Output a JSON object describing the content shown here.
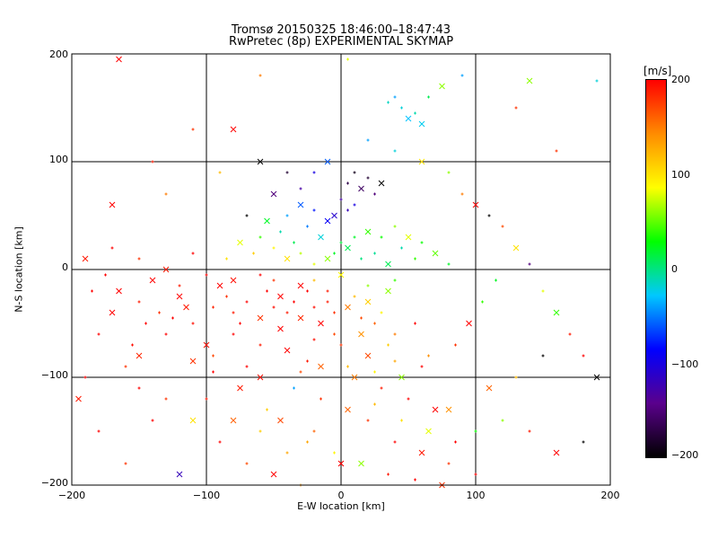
{
  "chart_data": {
    "type": "scatter",
    "title": "Tromsø 20150325 18:46:00–18:47:43",
    "subtitle": "RwPretec (8p) EXPERIMENTAL SKYMAP",
    "xlabel": "E-W location [km]",
    "ylabel": "N-S location [km]",
    "xlim": [
      -200,
      200
    ],
    "ylim": [
      -200,
      200
    ],
    "x_ticks": [
      "−200",
      "−100",
      "0",
      "100",
      "200"
    ],
    "y_ticks": [
      "−200",
      "−100",
      "0",
      "100",
      "200"
    ],
    "grid": true,
    "colorbar": {
      "label": "[m/s]",
      "range": [
        -200,
        200
      ],
      "ticks": [
        "200",
        "100",
        "0",
        "−100",
        "−200"
      ],
      "colors": [
        "#000000",
        "#5a008c",
        "#0000ff",
        "#00c8ff",
        "#00ff00",
        "#ffff00",
        "#ff8c00",
        "#ff0000"
      ]
    },
    "marker_styles": [
      "x",
      "+"
    ],
    "series": [
      {
        "points": [
          [
            -165,
            -20,
            200
          ],
          [
            -150,
            -30,
            190
          ],
          [
            -135,
            -40,
            180
          ],
          [
            -120,
            -25,
            200
          ],
          [
            -110,
            -50,
            195
          ],
          [
            -95,
            -35,
            185
          ],
          [
            -90,
            -15,
            200
          ],
          [
            -80,
            -40,
            190
          ],
          [
            -70,
            -30,
            200
          ],
          [
            -60,
            -45,
            180
          ],
          [
            -55,
            -20,
            200
          ],
          [
            -50,
            -35,
            195
          ],
          [
            -45,
            -25,
            200
          ],
          [
            -40,
            -40,
            190
          ],
          [
            -35,
            -30,
            200
          ],
          [
            -30,
            -45,
            185
          ],
          [
            -25,
            -20,
            200
          ],
          [
            -20,
            -35,
            195
          ],
          [
            -15,
            -50,
            200
          ],
          [
            -10,
            -30,
            190
          ],
          [
            -5,
            -40,
            180
          ],
          [
            5,
            -35,
            150
          ],
          [
            10,
            -25,
            120
          ],
          [
            15,
            -45,
            170
          ],
          [
            20,
            -30,
            110
          ],
          [
            25,
            -50,
            160
          ],
          [
            30,
            -40,
            90
          ],
          [
            35,
            -20,
            60
          ],
          [
            40,
            -60,
            150
          ],
          [
            -130,
            -60,
            200
          ],
          [
            -100,
            -70,
            195
          ],
          [
            -80,
            -60,
            200
          ],
          [
            -60,
            -70,
            190
          ],
          [
            -40,
            -75,
            200
          ],
          [
            -20,
            -65,
            195
          ],
          [
            0,
            -70,
            180
          ],
          [
            20,
            -80,
            170
          ],
          [
            40,
            -85,
            130
          ],
          [
            60,
            -90,
            200
          ],
          [
            -140,
            -10,
            200
          ],
          [
            -120,
            -15,
            190
          ],
          [
            -100,
            -5,
            200
          ],
          [
            -80,
            -10,
            195
          ],
          [
            -60,
            -5,
            200
          ],
          [
            -20,
            -10,
            120
          ],
          [
            0,
            -5,
            90
          ],
          [
            20,
            -15,
            60
          ],
          [
            40,
            -10,
            40
          ],
          [
            -170,
            -40,
            200
          ],
          [
            -180,
            -60,
            200
          ],
          [
            -155,
            -70,
            195
          ],
          [
            -110,
            -85,
            180
          ],
          [
            -70,
            -90,
            200
          ],
          [
            -30,
            -95,
            170
          ],
          [
            10,
            -100,
            150
          ],
          [
            30,
            -110,
            190
          ],
          [
            50,
            -120,
            200
          ],
          [
            70,
            -130,
            200
          ],
          [
            20,
            -140,
            180
          ],
          [
            40,
            -160,
            200
          ],
          [
            60,
            -170,
            190
          ],
          [
            -20,
            -150,
            160
          ],
          [
            -40,
            -170,
            130
          ],
          [
            0,
            -180,
            200
          ],
          [
            80,
            -180,
            180
          ],
          [
            100,
            -190,
            200
          ],
          [
            -150,
            -80,
            185
          ],
          [
            -125,
            -45,
            200
          ],
          [
            -85,
            -25,
            180
          ],
          [
            -45,
            -55,
            200
          ],
          [
            -25,
            -85,
            190
          ],
          [
            -5,
            -60,
            170
          ],
          [
            15,
            -60,
            140
          ],
          [
            35,
            -70,
            110
          ],
          [
            55,
            -50,
            200
          ],
          [
            -60,
            -100,
            195
          ],
          [
            -95,
            -95,
            200
          ],
          [
            -15,
            -120,
            180
          ],
          [
            5,
            -130,
            160
          ],
          [
            25,
            -125,
            120
          ],
          [
            45,
            -140,
            100
          ],
          [
            65,
            -150,
            80
          ],
          [
            85,
            -160,
            200
          ],
          [
            -10,
            -20,
            190
          ],
          [
            -30,
            -15,
            200
          ],
          [
            -50,
            -10,
            180
          ],
          [
            -75,
            -50,
            200
          ],
          [
            -115,
            -35,
            190
          ],
          [
            -145,
            -50,
            200
          ],
          [
            -160,
            -90,
            180
          ],
          [
            -5,
            50,
            -110
          ],
          [
            5,
            55,
            -120
          ],
          [
            10,
            60,
            -100
          ],
          [
            -10,
            45,
            -90
          ],
          [
            -20,
            55,
            -80
          ],
          [
            0,
            65,
            -130
          ],
          [
            15,
            75,
            -160
          ],
          [
            20,
            85,
            -180
          ],
          [
            25,
            70,
            -150
          ],
          [
            30,
            80,
            -200
          ],
          [
            10,
            90,
            -190
          ],
          [
            5,
            80,
            -170
          ],
          [
            -30,
            60,
            -60
          ],
          [
            -40,
            50,
            -40
          ],
          [
            -25,
            40,
            -50
          ],
          [
            -15,
            30,
            -20
          ],
          [
            -35,
            25,
            10
          ],
          [
            -45,
            35,
            -10
          ],
          [
            -55,
            45,
            20
          ],
          [
            -60,
            30,
            40
          ],
          [
            -5,
            15,
            20
          ],
          [
            5,
            20,
            10
          ],
          [
            15,
            10,
            0
          ],
          [
            25,
            15,
            -5
          ],
          [
            35,
            5,
            10
          ],
          [
            45,
            20,
            -10
          ],
          [
            30,
            30,
            30
          ],
          [
            20,
            35,
            40
          ],
          [
            10,
            30,
            20
          ],
          [
            0,
            25,
            15
          ],
          [
            -10,
            10,
            60
          ],
          [
            -20,
            5,
            80
          ],
          [
            -30,
            15,
            70
          ],
          [
            -40,
            10,
            100
          ],
          [
            -50,
            20,
            90
          ],
          [
            -65,
            15,
            110
          ],
          [
            -75,
            25,
            80
          ],
          [
            -85,
            10,
            100
          ],
          [
            40,
            40,
            60
          ],
          [
            50,
            30,
            80
          ],
          [
            55,
            10,
            40
          ],
          [
            60,
            25,
            30
          ],
          [
            70,
            15,
            50
          ],
          [
            80,
            5,
            20
          ],
          [
            45,
            150,
            -20
          ],
          [
            50,
            140,
            -30
          ],
          [
            55,
            145,
            -10
          ],
          [
            40,
            160,
            -40
          ],
          [
            60,
            135,
            -25
          ],
          [
            35,
            155,
            -15
          ],
          [
            65,
            160,
            10
          ],
          [
            75,
            170,
            60
          ],
          [
            90,
            180,
            -40
          ],
          [
            130,
            150,
            180
          ],
          [
            140,
            175,
            60
          ],
          [
            190,
            175,
            -20
          ],
          [
            160,
            110,
            180
          ],
          [
            -165,
            195,
            200
          ],
          [
            5,
            195,
            80
          ],
          [
            -60,
            180,
            150
          ],
          [
            -80,
            130,
            200
          ],
          [
            -110,
            130,
            180
          ],
          [
            -140,
            100,
            190
          ],
          [
            -170,
            60,
            200
          ],
          [
            -130,
            70,
            150
          ],
          [
            -90,
            90,
            120
          ],
          [
            -60,
            100,
            -200
          ],
          [
            -40,
            90,
            -180
          ],
          [
            -70,
            50,
            -200
          ],
          [
            -50,
            70,
            -150
          ],
          [
            -30,
            75,
            -130
          ],
          [
            -20,
            90,
            -100
          ],
          [
            -10,
            100,
            -60
          ],
          [
            20,
            120,
            -40
          ],
          [
            40,
            110,
            -20
          ],
          [
            60,
            100,
            100
          ],
          [
            80,
            90,
            60
          ],
          [
            90,
            70,
            150
          ],
          [
            100,
            60,
            200
          ],
          [
            110,
            50,
            -200
          ],
          [
            120,
            40,
            170
          ],
          [
            130,
            20,
            100
          ],
          [
            140,
            5,
            -150
          ],
          [
            150,
            -20,
            80
          ],
          [
            160,
            -40,
            40
          ],
          [
            170,
            -60,
            190
          ],
          [
            180,
            -80,
            200
          ],
          [
            190,
            -100,
            -200
          ],
          [
            150,
            -80,
            -200
          ],
          [
            130,
            -100,
            120
          ],
          [
            110,
            -110,
            160
          ],
          [
            120,
            -140,
            60
          ],
          [
            140,
            -150,
            190
          ],
          [
            160,
            -170,
            200
          ],
          [
            180,
            -160,
            -200
          ],
          [
            100,
            -150,
            30
          ],
          [
            80,
            -130,
            140
          ],
          [
            -150,
            -110,
            200
          ],
          [
            -130,
            -120,
            180
          ],
          [
            -110,
            -140,
            100
          ],
          [
            -90,
            -160,
            200
          ],
          [
            -70,
            -180,
            170
          ],
          [
            -50,
            -190,
            200
          ],
          [
            -30,
            -200,
            140
          ],
          [
            -190,
            -100,
            200
          ],
          [
            -195,
            -120,
            190
          ],
          [
            -180,
            -150,
            200
          ],
          [
            -160,
            -180,
            180
          ],
          [
            -120,
            -190,
            -120
          ],
          [
            -175,
            -5,
            200
          ],
          [
            -185,
            -20,
            200
          ],
          [
            -190,
            10,
            190
          ],
          [
            -170,
            20,
            200
          ],
          [
            -150,
            10,
            180
          ],
          [
            -130,
            0,
            190
          ],
          [
            -110,
            15,
            200
          ],
          [
            -95,
            -80,
            170
          ],
          [
            -75,
            -110,
            190
          ],
          [
            -55,
            -130,
            110
          ],
          [
            -35,
            -110,
            -40
          ],
          [
            -15,
            -90,
            160
          ],
          [
            5,
            -90,
            120
          ],
          [
            25,
            -95,
            90
          ],
          [
            45,
            -100,
            60
          ],
          [
            65,
            -80,
            140
          ],
          [
            85,
            -70,
            180
          ],
          [
            95,
            -50,
            200
          ],
          [
            105,
            -30,
            40
          ],
          [
            115,
            -10,
            20
          ],
          [
            -45,
            -140,
            170
          ],
          [
            -25,
            -160,
            130
          ],
          [
            -5,
            -170,
            90
          ],
          [
            15,
            -180,
            60
          ],
          [
            35,
            -190,
            190
          ],
          [
            55,
            -195,
            200
          ],
          [
            75,
            -200,
            180
          ],
          [
            -140,
            -140,
            200
          ],
          [
            -100,
            -120,
            190
          ],
          [
            -80,
            -140,
            160
          ],
          [
            -60,
            -150,
            110
          ]
        ]
      }
    ]
  }
}
